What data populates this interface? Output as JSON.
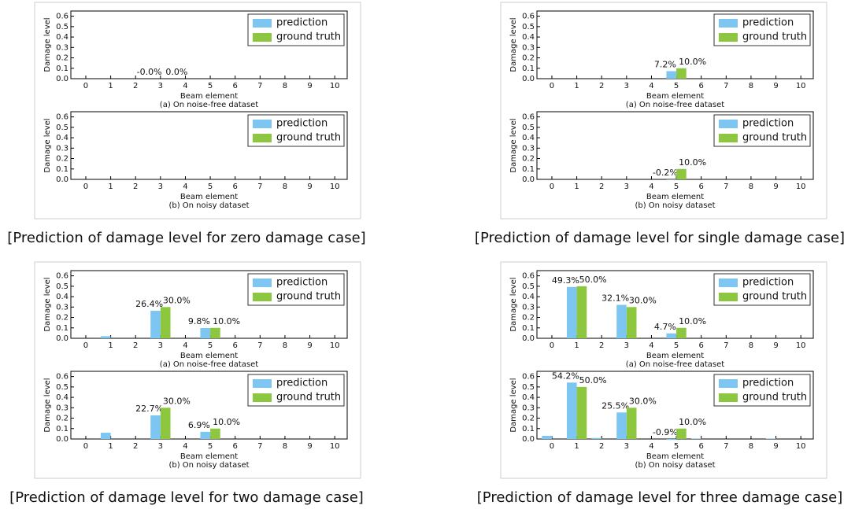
{
  "captions": [
    "[Prediction of damage level for zero damage case]",
    "[Prediction of damage level for single damage case]",
    "[Prediction of damage level for two damage case]",
    "[Prediction of damage level for three damage case]"
  ],
  "chart_data": [
    {
      "type": "bar",
      "subtitle": "(a) On noise-free dataset",
      "xlabel": "Beam element",
      "ylabel": "Damage level",
      "x": [
        0,
        1,
        2,
        3,
        4,
        5,
        6,
        7,
        8,
        9,
        10
      ],
      "xlim": [
        -0.6,
        10.5
      ],
      "ylim": [
        0,
        0.65
      ],
      "yticks": [
        {
          "value": 0,
          "label": "0.0"
        },
        0.1,
        0.2,
        0.3,
        0.4,
        0.5,
        0.6
      ],
      "legend": "upper right",
      "series": [
        {
          "name": "prediction",
          "color": "#7dc6f2",
          "values": [
            0,
            0,
            0,
            0,
            0,
            0,
            0,
            0,
            0,
            0,
            0
          ],
          "value_labels": [
            null,
            null,
            null,
            "-0.0%",
            null,
            null,
            null,
            null,
            null,
            null,
            null
          ]
        },
        {
          "name": "ground truth",
          "color": "#8dc63f",
          "values": [
            0,
            0,
            0,
            0,
            0,
            0,
            0,
            0,
            0,
            0,
            0
          ],
          "value_labels": [
            null,
            null,
            null,
            "0.0%",
            null,
            null,
            null,
            null,
            null,
            null,
            null
          ]
        }
      ]
    },
    {
      "type": "bar",
      "subtitle": "(b) On noisy dataset",
      "xlabel": "Beam element",
      "ylabel": "Damage level",
      "x": [
        0,
        1,
        2,
        3,
        4,
        5,
        6,
        7,
        8,
        9,
        10
      ],
      "xlim": [
        -0.6,
        10.5
      ],
      "ylim": [
        0,
        0.65
      ],
      "yticks": [
        {
          "value": 0,
          "label": "0.0"
        },
        0.1,
        0.2,
        0.3,
        0.4,
        0.5,
        0.6
      ],
      "legend": "upper right",
      "series": [
        {
          "name": "prediction",
          "color": "#7dc6f2",
          "values": [
            0,
            0,
            0,
            0,
            0,
            0,
            0,
            0,
            0,
            0,
            0
          ]
        },
        {
          "name": "ground truth",
          "color": "#8dc63f",
          "values": [
            0,
            0,
            0,
            0,
            0,
            0,
            0,
            0,
            0,
            0,
            0
          ]
        }
      ]
    },
    {
      "type": "bar",
      "subtitle": "(a) On noise-free dataset",
      "xlabel": "Beam element",
      "ylabel": "Damage level",
      "x": [
        0,
        1,
        2,
        3,
        4,
        5,
        6,
        7,
        8,
        9,
        10
      ],
      "xlim": [
        -0.6,
        10.5
      ],
      "ylim": [
        0,
        0.65
      ],
      "yticks": [
        {
          "value": 0,
          "label": "0.0"
        },
        0.1,
        0.2,
        0.3,
        0.4,
        0.5,
        0.6
      ],
      "legend": "upper right",
      "series": [
        {
          "name": "prediction",
          "color": "#7dc6f2",
          "values": [
            0,
            0,
            0,
            0,
            0,
            0.072,
            0,
            0,
            0,
            0,
            0
          ],
          "value_labels": [
            null,
            null,
            null,
            null,
            null,
            "7.2%",
            null,
            null,
            null,
            null,
            null
          ]
        },
        {
          "name": "ground truth",
          "color": "#8dc63f",
          "values": [
            0,
            0,
            0,
            0,
            0,
            0.1,
            0,
            0,
            0,
            0,
            0
          ],
          "value_labels": [
            null,
            null,
            null,
            null,
            null,
            "10.0%",
            null,
            null,
            null,
            null,
            null
          ]
        }
      ]
    },
    {
      "type": "bar",
      "subtitle": "(b) On noisy dataset",
      "xlabel": "Beam element",
      "ylabel": "Damage level",
      "x": [
        0,
        1,
        2,
        3,
        4,
        5,
        6,
        7,
        8,
        9,
        10
      ],
      "xlim": [
        -0.6,
        10.5
      ],
      "ylim": [
        0,
        0.65
      ],
      "yticks": [
        {
          "value": 0,
          "label": "0.0"
        },
        0.1,
        0.2,
        0.3,
        0.4,
        0.5,
        0.6
      ],
      "legend": "upper right",
      "series": [
        {
          "name": "prediction",
          "color": "#7dc6f2",
          "values": [
            0,
            0,
            0,
            0,
            0,
            -0.002,
            0,
            0,
            0,
            0,
            0
          ],
          "value_labels": [
            null,
            null,
            null,
            null,
            null,
            "-0.2%",
            null,
            null,
            null,
            null,
            null
          ]
        },
        {
          "name": "ground truth",
          "color": "#8dc63f",
          "values": [
            0,
            0,
            0,
            0,
            0,
            0.1,
            0,
            0,
            0,
            0,
            0
          ],
          "value_labels": [
            null,
            null,
            null,
            null,
            null,
            "10.0%",
            null,
            null,
            null,
            null,
            null
          ]
        }
      ]
    },
    {
      "type": "bar",
      "subtitle": "(a) On noise-free dataset",
      "xlabel": "Beam element",
      "ylabel": "Damage level",
      "x": [
        0,
        1,
        2,
        3,
        4,
        5,
        6,
        7,
        8,
        9,
        10
      ],
      "xlim": [
        -0.6,
        10.5
      ],
      "ylim": [
        0,
        0.65
      ],
      "yticks": [
        {
          "value": 0,
          "label": "0.0"
        },
        0.1,
        0.2,
        0.3,
        0.4,
        0.5,
        0.6
      ],
      "legend": "upper right",
      "series": [
        {
          "name": "prediction",
          "color": "#7dc6f2",
          "values": [
            0,
            0.02,
            0,
            0.264,
            0,
            0.098,
            0,
            0,
            0,
            0,
            0
          ],
          "value_labels": [
            null,
            null,
            null,
            "26.4%",
            null,
            "9.8%",
            null,
            null,
            null,
            null,
            null
          ]
        },
        {
          "name": "ground truth",
          "color": "#8dc63f",
          "values": [
            0,
            0,
            0,
            0.3,
            0,
            0.1,
            0,
            0,
            0,
            0,
            0
          ],
          "value_labels": [
            null,
            null,
            null,
            "30.0%",
            null,
            "10.0%",
            null,
            null,
            null,
            null,
            null
          ]
        }
      ]
    },
    {
      "type": "bar",
      "subtitle": "(b) On noisy dataset",
      "xlabel": "Beam element",
      "ylabel": "Damage level",
      "x": [
        0,
        1,
        2,
        3,
        4,
        5,
        6,
        7,
        8,
        9,
        10
      ],
      "xlim": [
        -0.6,
        10.5
      ],
      "ylim": [
        0,
        0.65
      ],
      "yticks": [
        {
          "value": 0,
          "label": "0.0"
        },
        0.1,
        0.2,
        0.3,
        0.4,
        0.5,
        0.6
      ],
      "legend": "upper right",
      "series": [
        {
          "name": "prediction",
          "color": "#7dc6f2",
          "values": [
            0,
            0.06,
            0,
            0.227,
            0,
            0.069,
            0,
            0,
            0,
            0,
            0
          ],
          "value_labels": [
            null,
            null,
            null,
            "22.7%",
            null,
            "6.9%",
            null,
            null,
            null,
            null,
            null
          ]
        },
        {
          "name": "ground truth",
          "color": "#8dc63f",
          "values": [
            0,
            0,
            0,
            0.3,
            0,
            0.1,
            0,
            0,
            0,
            0,
            0
          ],
          "value_labels": [
            null,
            null,
            null,
            "30.0%",
            null,
            "10.0%",
            null,
            null,
            null,
            null,
            null
          ]
        }
      ]
    },
    {
      "type": "bar",
      "subtitle": "(a) On noise-free dataset",
      "xlabel": "Beam element",
      "ylabel": "Damage level",
      "x": [
        0,
        1,
        2,
        3,
        4,
        5,
        6,
        7,
        8,
        9,
        10
      ],
      "xlim": [
        -0.6,
        10.5
      ],
      "ylim": [
        0,
        0.65
      ],
      "yticks": [
        {
          "value": 0,
          "label": "0.0"
        },
        0.1,
        0.2,
        0.3,
        0.4,
        0.5,
        0.6
      ],
      "legend": "upper right",
      "series": [
        {
          "name": "prediction",
          "color": "#7dc6f2",
          "values": [
            0,
            0.493,
            0,
            0.321,
            0,
            0.047,
            0,
            0,
            0,
            0,
            0
          ],
          "value_labels": [
            null,
            "49.3%",
            null,
            "32.1%",
            null,
            "4.7%",
            null,
            null,
            null,
            null,
            null
          ]
        },
        {
          "name": "ground truth",
          "color": "#8dc63f",
          "values": [
            0,
            0.5,
            0,
            0.3,
            0,
            0.1,
            0,
            0,
            0,
            0,
            0
          ],
          "value_labels": [
            null,
            "50.0%",
            null,
            "30.0%",
            null,
            "10.0%",
            null,
            null,
            null,
            null,
            null
          ]
        }
      ]
    },
    {
      "type": "bar",
      "subtitle": "(b) On noisy dataset",
      "xlabel": "Beam element",
      "ylabel": "Damage level",
      "x": [
        0,
        1,
        2,
        3,
        4,
        5,
        6,
        7,
        8,
        9,
        10
      ],
      "xlim": [
        -0.6,
        10.5
      ],
      "ylim": [
        0,
        0.65
      ],
      "yticks": [
        {
          "value": 0,
          "label": "0.0"
        },
        0.1,
        0.2,
        0.3,
        0.4,
        0.5,
        0.6
      ],
      "legend": "upper right",
      "series": [
        {
          "name": "prediction",
          "color": "#7dc6f2",
          "values": [
            0.03,
            0.542,
            0.01,
            0.255,
            0,
            -0.009,
            0.005,
            0,
            0,
            0.005,
            0
          ],
          "value_labels": [
            null,
            "54.2%",
            null,
            "25.5%",
            null,
            "-0.9%",
            null,
            null,
            null,
            null,
            null
          ]
        },
        {
          "name": "ground truth",
          "color": "#8dc63f",
          "values": [
            0,
            0.5,
            0,
            0.3,
            0,
            0.1,
            0,
            0,
            0,
            0,
            0
          ],
          "value_labels": [
            null,
            "50.0%",
            null,
            "30.0%",
            null,
            "10.0%",
            null,
            null,
            null,
            null,
            null
          ]
        }
      ]
    }
  ]
}
